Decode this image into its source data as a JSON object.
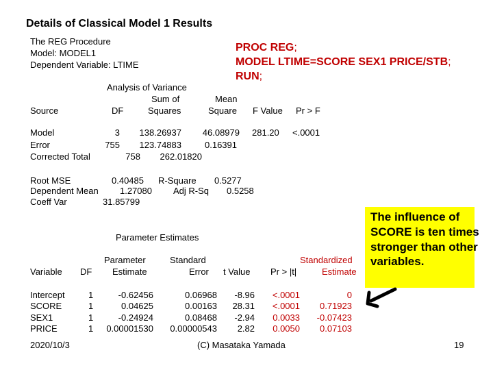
{
  "title": "Details of Classical Model 1 Results",
  "header": {
    "procedure": "The REG Procedure",
    "model": "Model: MODEL1",
    "dependent": "Dependent Variable: LTIME"
  },
  "code": {
    "line1_kw": "PROC REG",
    "line1_rest": ";",
    "line2_kw": "MODEL LTIME=SCORE SEX1 PRICE/STB",
    "line2_rest": ";",
    "line3_kw": "RUN",
    "line3_rest": ";"
  },
  "anova": {
    "title": "Analysis of Variance",
    "head_sumof": "Sum of",
    "head_mean": "Mean",
    "col_source": "Source",
    "col_df": "DF",
    "col_squares": "Squares",
    "col_square": "Square",
    "col_f": "F Value",
    "col_p": "Pr > F",
    "rows": [
      {
        "source": "Model",
        "df": "3",
        "ss": "138.26937",
        "ms": "46.08979",
        "f": "281.20",
        "p": "<.0001"
      },
      {
        "source": "Error",
        "df": "755",
        "ss": "123.74883",
        "ms": "0.16391"
      },
      {
        "source": "Corrected Total",
        "df": "758",
        "ss": "262.01820"
      }
    ]
  },
  "fit": {
    "root_mse_label": "Root MSE",
    "root_mse": "0.40485",
    "rsq_label": "R-Square",
    "rsq": "0.5277",
    "dep_mean_label": "Dependent Mean",
    "dep_mean": "1.27080",
    "adj_label": "Adj R-Sq",
    "adj": "0.5258",
    "cv_label": "Coeff Var",
    "cv": "31.85799"
  },
  "params": {
    "title": "Parameter Estimates",
    "col_variable": "Variable",
    "col_df": "DF",
    "col_param1": "Parameter",
    "col_param2": "Estimate",
    "col_se1": "Standard",
    "col_se2": "Error",
    "col_t": "t Value",
    "col_p": "Pr > |t|",
    "col_std1": "Standardized",
    "col_std2": "Estimate",
    "rows": [
      {
        "var": "Intercept",
        "df": "1",
        "est": "-0.62456",
        "se": "0.06968",
        "t": "-8.96",
        "p": "<.0001",
        "std": "0"
      },
      {
        "var": "SCORE",
        "df": "1",
        "est": "0.04625",
        "se": "0.00163",
        "t": "28.31",
        "p": "<.0001",
        "std": "0.71923"
      },
      {
        "var": "SEX1",
        "df": "1",
        "est": "-0.24924",
        "se": "0.08468",
        "t": "-2.94",
        "p": "0.0033",
        "std": "-0.07423"
      },
      {
        "var": "PRICE",
        "df": "1",
        "est": "0.00001530",
        "se": "0.00000543",
        "t": "2.82",
        "p": "0.0050",
        "std": "0.07103"
      }
    ]
  },
  "callout": {
    "text": "The influence of SCORE is ten times stronger than other variables."
  },
  "footer": {
    "date": "2020/10/3",
    "copyright": "(C) Masataka Yamada",
    "page": "19"
  },
  "colors": {
    "code": "#c00000",
    "callout_bg": "#ffff00"
  }
}
